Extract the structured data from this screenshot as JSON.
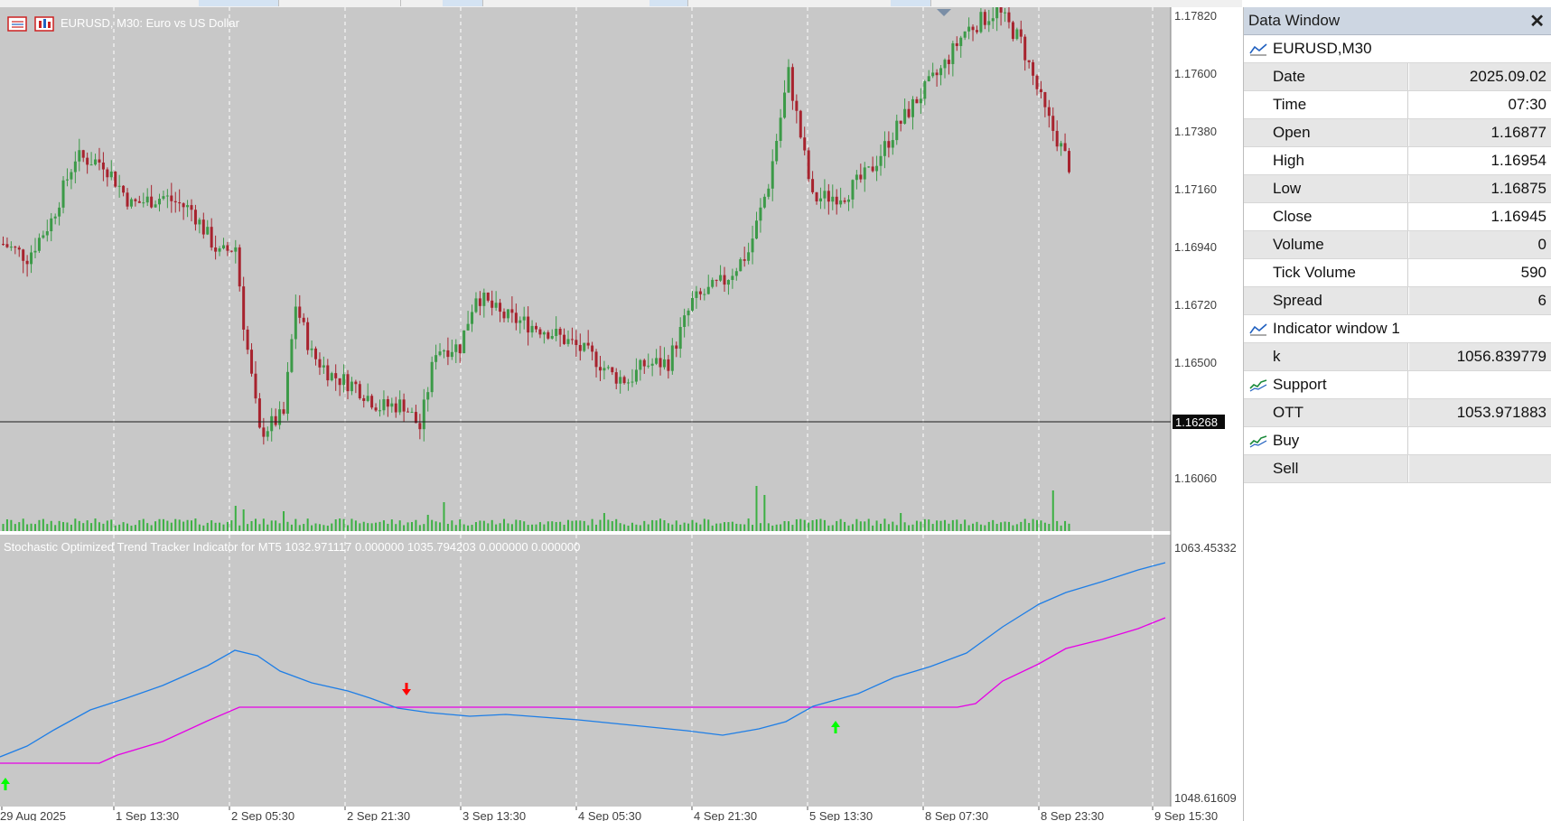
{
  "chart": {
    "symbol_title": "EURUSD, M30:  Euro vs US Dollar",
    "current_price_label": "1.16268",
    "price_axis": [
      "1.17820",
      "1.17600",
      "1.17380",
      "1.17160",
      "1.16940",
      "1.16720",
      "1.16500",
      "1.16060"
    ],
    "time_axis": [
      "29 Aug 2025",
      "1 Sep 13:30",
      "2 Sep 05:30",
      "2 Sep 21:30",
      "3 Sep 13:30",
      "4 Sep 05:30",
      "4 Sep 21:30",
      "5 Sep 13:30",
      "8 Sep 07:30",
      "8 Sep 23:30",
      "9 Sep 15:30"
    ],
    "colors": {
      "background": "#c8c8c8",
      "bull": "#3c9a48",
      "bear": "#a7232e",
      "volume": "#3cb043",
      "k_line": "#1e7ee6",
      "ott_line": "#e600e6",
      "buy_arrow": "#00ff00",
      "sell_arrow": "#ff0000"
    }
  },
  "indicator": {
    "title": "Stochastic Optimized Trend Tracker Indicator for MT5 1032.971117 0.000000 1035.794203 0.000000 0.000000",
    "axis_top": "1063.45332",
    "axis_bottom": "1048.61609"
  },
  "data_window": {
    "title": "Data Window",
    "close_icon": "✕",
    "symbol_row": "EURUSD,M30",
    "rows": [
      {
        "label": "Date",
        "value": "2025.09.02"
      },
      {
        "label": "Time",
        "value": "07:30"
      },
      {
        "label": "Open",
        "value": "1.16877"
      },
      {
        "label": "High",
        "value": "1.16954"
      },
      {
        "label": "Low",
        "value": "1.16875"
      },
      {
        "label": "Close",
        "value": "1.16945"
      },
      {
        "label": "Volume",
        "value": "0"
      },
      {
        "label": "Tick Volume",
        "value": "590"
      },
      {
        "label": "Spread",
        "value": "6"
      }
    ],
    "indicator_row": "Indicator window 1",
    "buffers": [
      {
        "label": "k",
        "value": "1056.839779"
      },
      {
        "label": "Support",
        "value": ""
      },
      {
        "label": "OTT",
        "value": "1053.971883"
      },
      {
        "label": "Buy",
        "value": ""
      },
      {
        "label": "Sell",
        "value": ""
      }
    ]
  }
}
